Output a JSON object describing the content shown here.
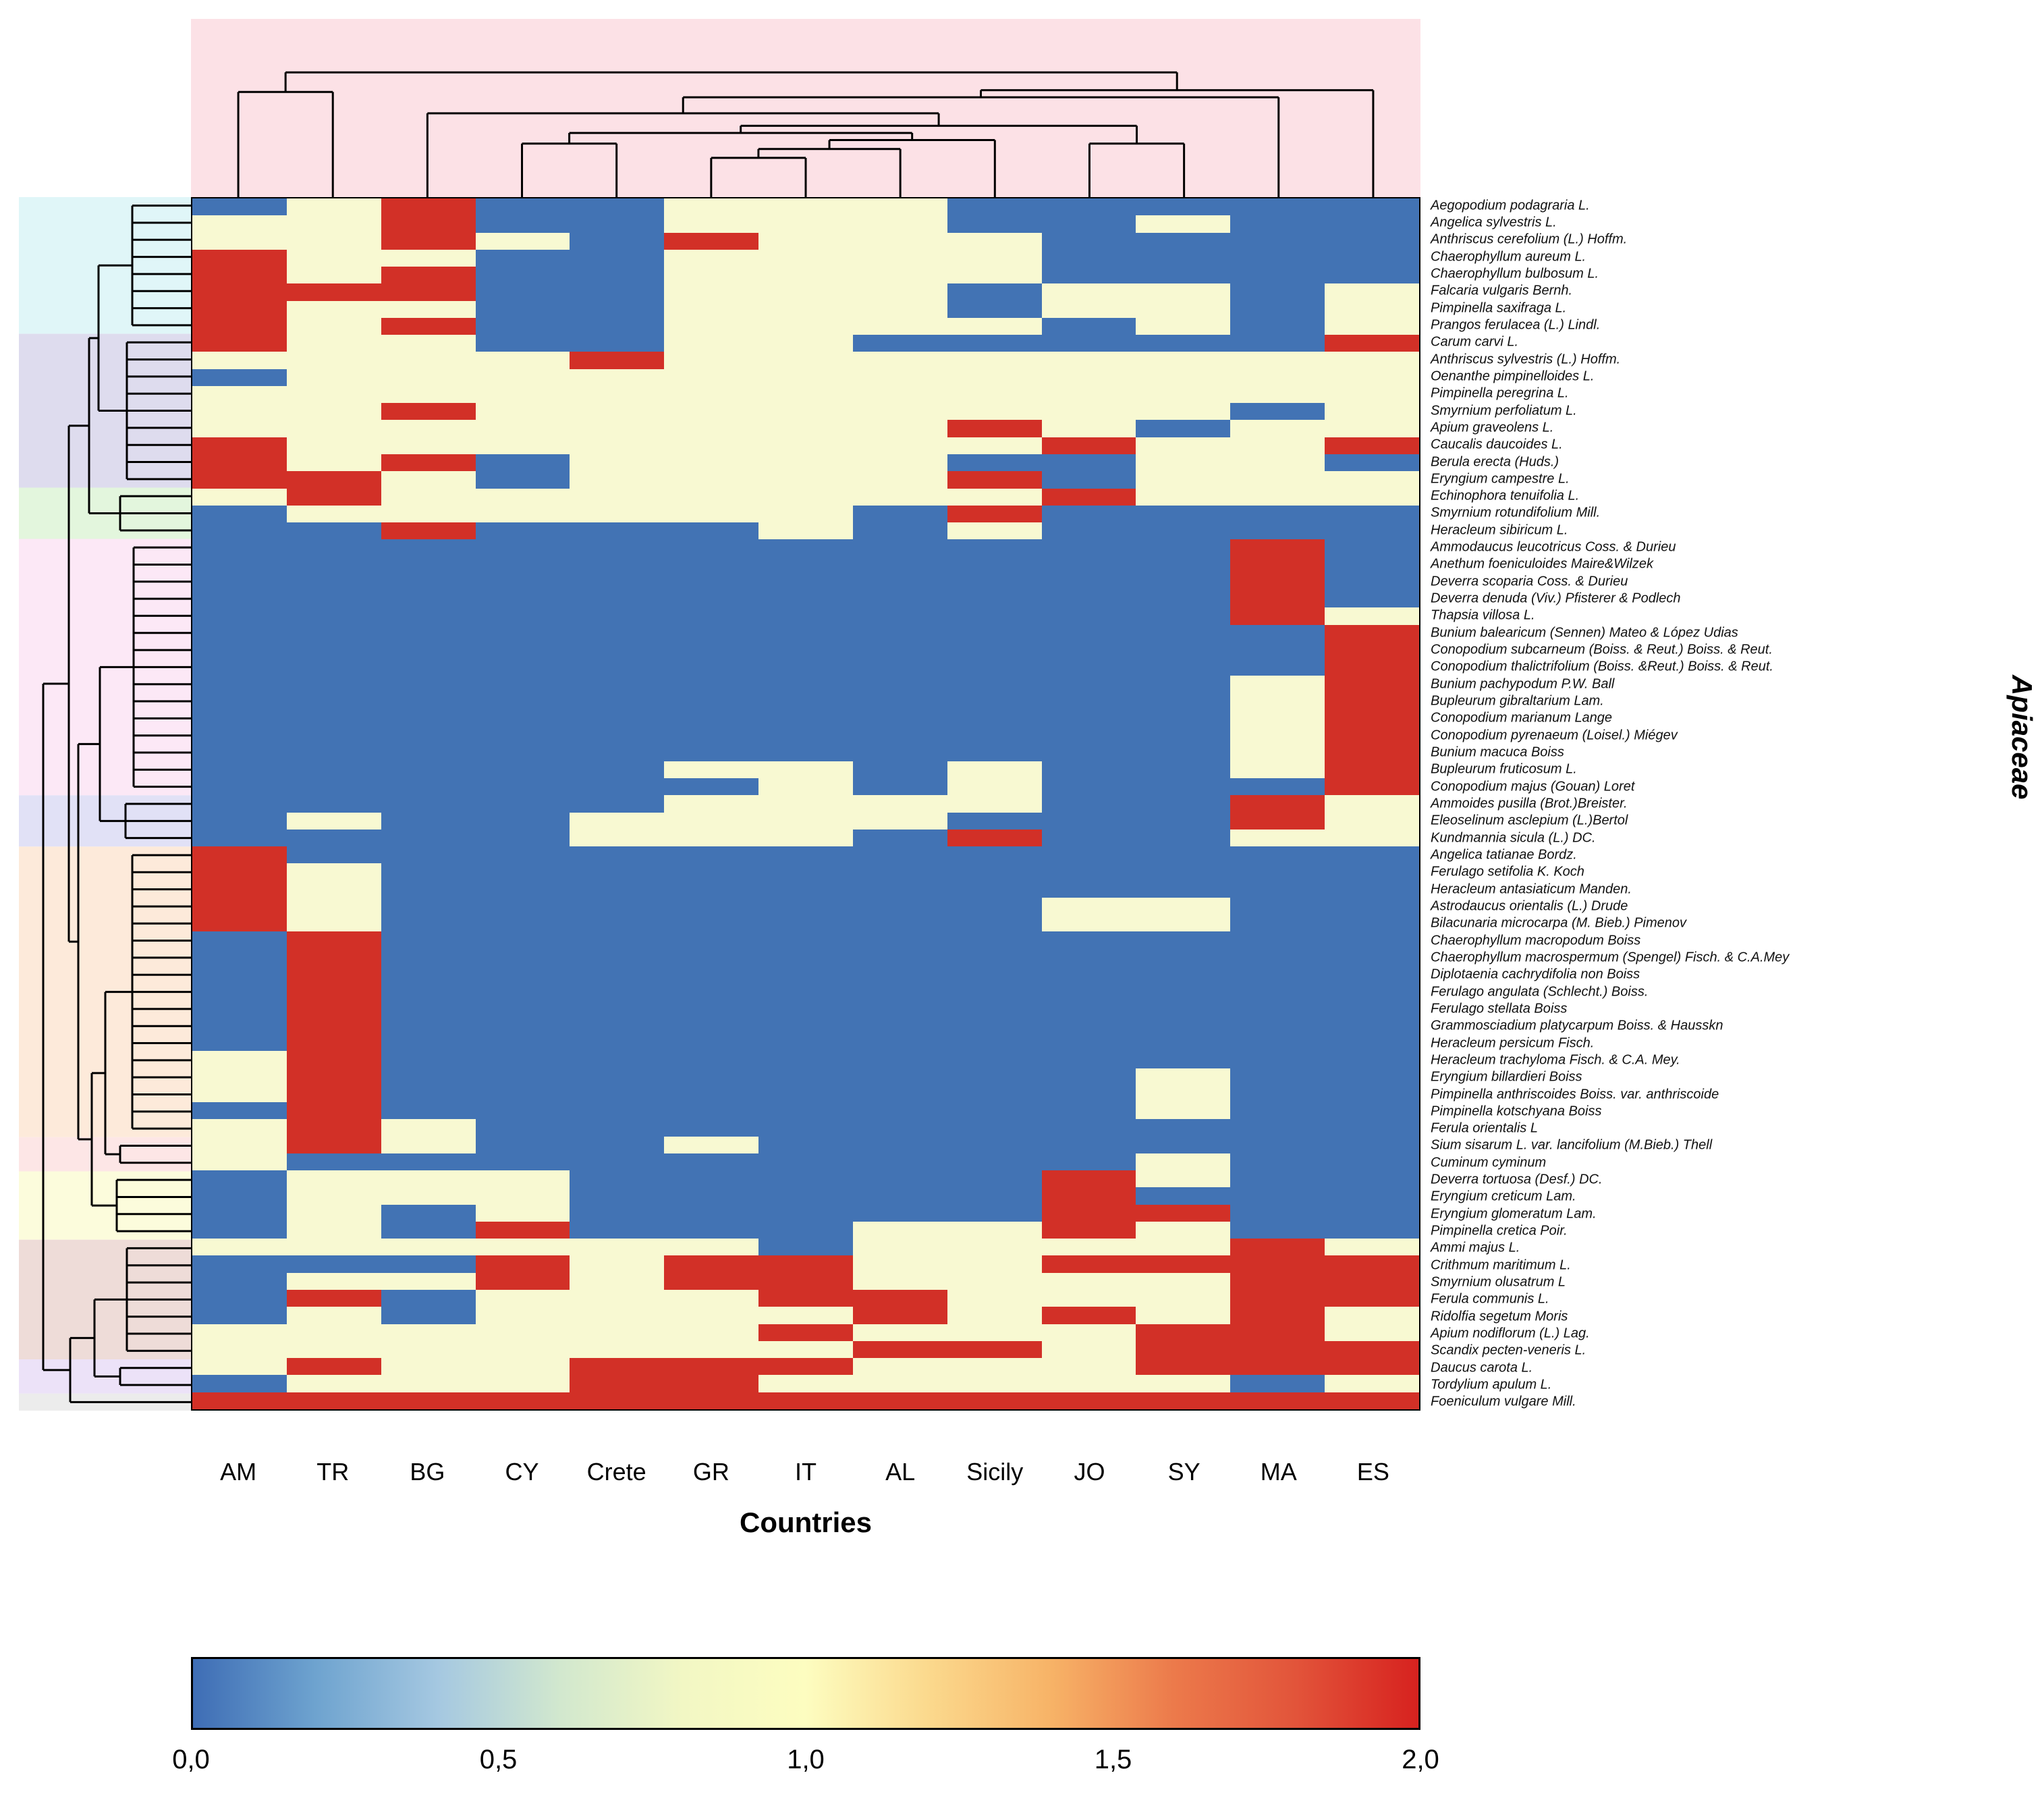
{
  "y_axis_title": "Apiaceae",
  "x_axis_title": "Countries",
  "top_dendrogram_bg": "#fce1e6",
  "chart_data": {
    "type": "heatmap",
    "title": "",
    "xlabel": "Countries",
    "ylabel": "Apiaceae",
    "value_range": [
      0,
      2
    ],
    "legend_position": "bottom",
    "cell_colors": {
      "0": "#4273b4",
      "1": "#f8f9d2",
      "2": "#d23027"
    },
    "columns": [
      "AM",
      "TR",
      "BG",
      "CY",
      "Crete",
      "GR",
      "IT",
      "AL",
      "Sicily",
      "JO",
      "SY",
      "MA",
      "ES"
    ],
    "rows": [
      "Aegopodium podagraria L.",
      "Angelica sylvestris L.",
      "Anthriscus cerefolium (L.) Hoffm.",
      "Chaerophyllum aureum L.",
      "Chaerophyllum bulbosum L.",
      "Falcaria vulgaris Bernh.",
      "Pimpinella saxifraga L.",
      "Prangos ferulacea (L.) Lindl.",
      "Carum carvi L.",
      "Anthriscus sylvestris (L.) Hoffm.",
      "Oenanthe  pimpinelloides L.",
      "Pimpinella peregrina L.",
      "Smyrnium perfoliatum L.",
      "Apium graveolens L.",
      "Caucalis daucoides L.",
      "Berula erecta (Huds.)",
      "Eryngium campestre L.",
      "Echinophora tenuifolia L.",
      "Smyrnium rotundifolium Mill.",
      "Heracleum sibiricum L.",
      "Ammodaucus leucotricus Coss. & Durieu",
      "Anethum foeniculoides Maire&Wilzek",
      "Deverra scoparia Coss. & Durieu",
      "Deverra denuda (Viv.) Pfisterer & Podlech",
      "Thapsia villosa L.",
      "Bunium balearicum (Sennen) Mateo & López Udias",
      "Conopodium subcarneum (Boiss. & Reut.) Boiss. & Reut.",
      "Conopodium thalictrifolium (Boiss. &Reut.) Boiss. & Reut.",
      "Bunium pachypodum P.W. Ball",
      "Bupleurum gibraltarium Lam.",
      "Conopodium marianum Lange",
      "Conopodium pyrenaeum (Loisel.) Miégev",
      "Bunium macuca Boiss",
      "Bupleurum fruticosum L.",
      "Conopodium majus (Gouan) Loret",
      "Ammoides pusilla (Brot.)Breister.",
      "Eleoselinum asclepium (L.)Bertol",
      "Kundmannia sicula (L.) DC.",
      "Angelica tatianae Bordz.",
      "Ferulago setifolia K. Koch",
      "Heracleum antasiaticum Manden.",
      "Astrodaucus orientalis (L.) Drude",
      "Bilacunaria microcarpa (M. Bieb.) Pimenov",
      "Chaerophyllum macropodum Boiss",
      "Chaerophyllum macrospermum (Spengel) Fisch. & C.A.Mey",
      "Diplotaenia cachrydifolia non Boiss",
      "Ferulago angulata (Schlecht.) Boiss.",
      "Ferulago stellata Boiss",
      "Grammosciadium platycarpum Boiss. & Hausskn",
      "Heracleum persicum Fisch.",
      "Heracleum  trachyloma Fisch. & C.A. Mey.",
      "Eryngium billardieri Boiss",
      "Pimpinella anthriscoides Boiss. var. anthriscoide",
      "Pimpinella kotschyana Boiss",
      "Ferula orientalis L",
      "Sium sisarum L.  var. lancifolium (M.Bieb.) Thell",
      "Cuminum  cyminum",
      "Deverra tortuosa (Desf.) DC.",
      "Eryngium creticum Lam.",
      "Eryngium glomeratum Lam.",
      "Pimpinella cretica Poir.",
      "Ammi  majus L.",
      "Crithmum maritimum L.",
      "Smyrnium olusatrum L",
      "Ferula communis L.",
      "Ridolfia segetum Moris",
      "Apium nodiflorum (L.) Lag.",
      "Scandix pecten-veneris L.",
      "Daucus carota L.",
      "Tordylium apulum L.",
      "Foeniculum vulgare Mill."
    ],
    "values": [
      [
        0,
        1,
        2,
        0,
        0,
        1,
        1,
        1,
        0,
        0,
        0,
        0,
        0
      ],
      [
        1,
        1,
        2,
        0,
        0,
        1,
        1,
        1,
        0,
        0,
        1,
        0,
        0
      ],
      [
        1,
        1,
        2,
        1,
        0,
        2,
        1,
        1,
        1,
        0,
        0,
        0,
        0
      ],
      [
        2,
        1,
        1,
        0,
        0,
        1,
        1,
        1,
        1,
        0,
        0,
        0,
        0
      ],
      [
        2,
        1,
        2,
        0,
        0,
        1,
        1,
        1,
        1,
        0,
        0,
        0,
        0
      ],
      [
        2,
        2,
        2,
        0,
        0,
        1,
        1,
        1,
        0,
        1,
        1,
        0,
        1
      ],
      [
        2,
        1,
        1,
        0,
        0,
        1,
        1,
        1,
        0,
        1,
        1,
        0,
        1
      ],
      [
        2,
        1,
        2,
        0,
        0,
        1,
        1,
        1,
        1,
        0,
        1,
        0,
        1
      ],
      [
        2,
        1,
        1,
        0,
        0,
        1,
        1,
        0,
        0,
        0,
        0,
        0,
        2
      ],
      [
        1,
        1,
        1,
        1,
        2,
        1,
        1,
        1,
        1,
        1,
        1,
        1,
        1
      ],
      [
        0,
        1,
        1,
        1,
        1,
        1,
        1,
        1,
        1,
        1,
        1,
        1,
        1
      ],
      [
        1,
        1,
        1,
        1,
        1,
        1,
        1,
        1,
        1,
        1,
        1,
        1,
        1
      ],
      [
        1,
        1,
        2,
        1,
        1,
        1,
        1,
        1,
        1,
        1,
        1,
        0,
        1
      ],
      [
        1,
        1,
        1,
        1,
        1,
        1,
        1,
        1,
        2,
        1,
        0,
        1,
        1
      ],
      [
        2,
        1,
        1,
        1,
        1,
        1,
        1,
        1,
        1,
        2,
        1,
        1,
        2
      ],
      [
        2,
        1,
        2,
        0,
        1,
        1,
        1,
        1,
        0,
        0,
        1,
        1,
        0
      ],
      [
        2,
        2,
        1,
        0,
        1,
        1,
        1,
        1,
        2,
        0,
        1,
        1,
        1
      ],
      [
        1,
        2,
        1,
        1,
        1,
        1,
        1,
        1,
        1,
        2,
        1,
        1,
        1
      ],
      [
        0,
        1,
        1,
        1,
        1,
        1,
        1,
        0,
        2,
        0,
        0,
        0,
        0
      ],
      [
        0,
        0,
        2,
        0,
        0,
        0,
        1,
        0,
        1,
        0,
        0,
        0,
        0
      ],
      [
        0,
        0,
        0,
        0,
        0,
        0,
        0,
        0,
        0,
        0,
        0,
        2,
        0
      ],
      [
        0,
        0,
        0,
        0,
        0,
        0,
        0,
        0,
        0,
        0,
        0,
        2,
        0
      ],
      [
        0,
        0,
        0,
        0,
        0,
        0,
        0,
        0,
        0,
        0,
        0,
        2,
        0
      ],
      [
        0,
        0,
        0,
        0,
        0,
        0,
        0,
        0,
        0,
        0,
        0,
        2,
        0
      ],
      [
        0,
        0,
        0,
        0,
        0,
        0,
        0,
        0,
        0,
        0,
        0,
        2,
        1
      ],
      [
        0,
        0,
        0,
        0,
        0,
        0,
        0,
        0,
        0,
        0,
        0,
        0,
        2
      ],
      [
        0,
        0,
        0,
        0,
        0,
        0,
        0,
        0,
        0,
        0,
        0,
        0,
        2
      ],
      [
        0,
        0,
        0,
        0,
        0,
        0,
        0,
        0,
        0,
        0,
        0,
        0,
        2
      ],
      [
        0,
        0,
        0,
        0,
        0,
        0,
        0,
        0,
        0,
        0,
        0,
        1,
        2
      ],
      [
        0,
        0,
        0,
        0,
        0,
        0,
        0,
        0,
        0,
        0,
        0,
        1,
        2
      ],
      [
        0,
        0,
        0,
        0,
        0,
        0,
        0,
        0,
        0,
        0,
        0,
        1,
        2
      ],
      [
        0,
        0,
        0,
        0,
        0,
        0,
        0,
        0,
        0,
        0,
        0,
        1,
        2
      ],
      [
        0,
        0,
        0,
        0,
        0,
        0,
        0,
        0,
        0,
        0,
        0,
        1,
        2
      ],
      [
        0,
        0,
        0,
        0,
        0,
        1,
        1,
        0,
        1,
        0,
        0,
        1,
        2
      ],
      [
        0,
        0,
        0,
        0,
        0,
        0,
        1,
        0,
        1,
        0,
        0,
        0,
        2
      ],
      [
        0,
        0,
        0,
        0,
        0,
        1,
        1,
        1,
        1,
        0,
        0,
        2,
        1
      ],
      [
        0,
        1,
        0,
        0,
        1,
        1,
        1,
        1,
        0,
        0,
        0,
        2,
        1
      ],
      [
        0,
        0,
        0,
        0,
        1,
        1,
        1,
        0,
        2,
        0,
        0,
        1,
        1
      ],
      [
        2,
        0,
        0,
        0,
        0,
        0,
        0,
        0,
        0,
        0,
        0,
        0,
        0
      ],
      [
        2,
        1,
        0,
        0,
        0,
        0,
        0,
        0,
        0,
        0,
        0,
        0,
        0
      ],
      [
        2,
        1,
        0,
        0,
        0,
        0,
        0,
        0,
        0,
        0,
        0,
        0,
        0
      ],
      [
        2,
        1,
        0,
        0,
        0,
        0,
        0,
        0,
        0,
        1,
        1,
        0,
        0
      ],
      [
        2,
        1,
        0,
        0,
        0,
        0,
        0,
        0,
        0,
        1,
        1,
        0,
        0
      ],
      [
        0,
        2,
        0,
        0,
        0,
        0,
        0,
        0,
        0,
        0,
        0,
        0,
        0
      ],
      [
        0,
        2,
        0,
        0,
        0,
        0,
        0,
        0,
        0,
        0,
        0,
        0,
        0
      ],
      [
        0,
        2,
        0,
        0,
        0,
        0,
        0,
        0,
        0,
        0,
        0,
        0,
        0
      ],
      [
        0,
        2,
        0,
        0,
        0,
        0,
        0,
        0,
        0,
        0,
        0,
        0,
        0
      ],
      [
        0,
        2,
        0,
        0,
        0,
        0,
        0,
        0,
        0,
        0,
        0,
        0,
        0
      ],
      [
        0,
        2,
        0,
        0,
        0,
        0,
        0,
        0,
        0,
        0,
        0,
        0,
        0
      ],
      [
        0,
        2,
        0,
        0,
        0,
        0,
        0,
        0,
        0,
        0,
        0,
        0,
        0
      ],
      [
        1,
        2,
        0,
        0,
        0,
        0,
        0,
        0,
        0,
        0,
        0,
        0,
        0
      ],
      [
        1,
        2,
        0,
        0,
        0,
        0,
        0,
        0,
        0,
        0,
        1,
        0,
        0
      ],
      [
        1,
        2,
        0,
        0,
        0,
        0,
        0,
        0,
        0,
        0,
        1,
        0,
        0
      ],
      [
        0,
        2,
        0,
        0,
        0,
        0,
        0,
        0,
        0,
        0,
        1,
        0,
        0
      ],
      [
        1,
        2,
        1,
        0,
        0,
        0,
        0,
        0,
        0,
        0,
        0,
        0,
        0
      ],
      [
        1,
        2,
        1,
        0,
        0,
        1,
        0,
        0,
        0,
        0,
        0,
        0,
        0
      ],
      [
        1,
        0,
        0,
        0,
        0,
        0,
        0,
        0,
        0,
        0,
        1,
        0,
        0
      ],
      [
        0,
        1,
        1,
        1,
        0,
        0,
        0,
        0,
        0,
        2,
        1,
        0,
        0
      ],
      [
        0,
        1,
        1,
        1,
        0,
        0,
        0,
        0,
        0,
        2,
        0,
        0,
        0
      ],
      [
        0,
        1,
        0,
        1,
        0,
        0,
        0,
        0,
        0,
        2,
        2,
        0,
        0
      ],
      [
        0,
        1,
        0,
        2,
        0,
        0,
        0,
        1,
        1,
        2,
        1,
        0,
        0
      ],
      [
        1,
        1,
        1,
        1,
        1,
        1,
        0,
        1,
        1,
        1,
        1,
        2,
        1
      ],
      [
        0,
        0,
        0,
        2,
        1,
        2,
        2,
        1,
        1,
        2,
        2,
        2,
        2
      ],
      [
        0,
        1,
        1,
        2,
        1,
        2,
        2,
        1,
        1,
        1,
        1,
        2,
        2
      ],
      [
        0,
        2,
        0,
        1,
        1,
        1,
        2,
        2,
        1,
        1,
        1,
        2,
        2
      ],
      [
        0,
        1,
        0,
        1,
        1,
        1,
        1,
        2,
        1,
        2,
        1,
        2,
        1
      ],
      [
        1,
        1,
        1,
        1,
        1,
        1,
        2,
        1,
        1,
        1,
        2,
        2,
        1
      ],
      [
        1,
        1,
        1,
        1,
        1,
        1,
        1,
        2,
        2,
        1,
        2,
        2,
        2
      ],
      [
        1,
        2,
        1,
        1,
        2,
        2,
        2,
        1,
        1,
        1,
        2,
        2,
        2
      ],
      [
        0,
        1,
        1,
        1,
        2,
        2,
        1,
        1,
        1,
        1,
        1,
        0,
        1
      ],
      [
        2,
        2,
        2,
        2,
        2,
        2,
        2,
        2,
        2,
        2,
        2,
        2,
        2
      ]
    ],
    "row_clusters": [
      {
        "rows": [
          1,
          8
        ],
        "color": "#e0f6f8"
      },
      {
        "rows": [
          9,
          17
        ],
        "color": "#dedcee"
      },
      {
        "rows": [
          18,
          20
        ],
        "color": "#e3f6dd"
      },
      {
        "rows": [
          21,
          35
        ],
        "color": "#fce8f6"
      },
      {
        "rows": [
          36,
          38
        ],
        "color": "#e1e1f6"
      },
      {
        "rows": [
          39,
          55
        ],
        "color": "#fdeada"
      },
      {
        "rows": [
          56,
          57
        ],
        "color": "#fde6e6"
      },
      {
        "rows": [
          58,
          61
        ],
        "color": "#fcfcdc"
      },
      {
        "rows": [
          62,
          68
        ],
        "color": "#eedcd8"
      },
      {
        "rows": [
          69,
          70
        ],
        "color": "#ece2f8"
      },
      {
        "rows": [
          71,
          71
        ],
        "color": "#ececec"
      }
    ],
    "col_dendrogram": {
      "h": 0.3,
      "l": {
        "h": 0.41,
        "l": 0,
        "r": 1
      },
      "r": {
        "h": 0.4,
        "l": {
          "h": 0.44,
          "l": {
            "h": 0.53,
            "l": 2,
            "r": {
              "h": 0.6,
              "l": {
                "h": 0.64,
                "l": {
                  "h": 0.7,
                  "l": 3,
                  "r": 4
                },
                "r": {
                  "h": 0.68,
                  "l": {
                    "h": 0.73,
                    "l": {
                      "h": 0.78,
                      "l": 5,
                      "r": 6
                    },
                    "r": 7
                  },
                  "r": 8
                }
              },
              "r": {
                "h": 0.7,
                "l": 9,
                "r": 10
              }
            }
          },
          "r": 11
        },
        "r": 12
      },
      "colorbar_note": ""
    }
  },
  "colorbar": {
    "ticks": [
      "0,0",
      "0,5",
      "1,0",
      "1,5",
      "2,0"
    ],
    "stops": [
      "#3e6db5",
      "#6ea3cf",
      "#a5c8e1",
      "#d2e8ce",
      "#f2f7c4",
      "#fdfdc0",
      "#fbd98d",
      "#f7b367",
      "#ec7a4b",
      "#e2543a",
      "#d7221f"
    ]
  }
}
